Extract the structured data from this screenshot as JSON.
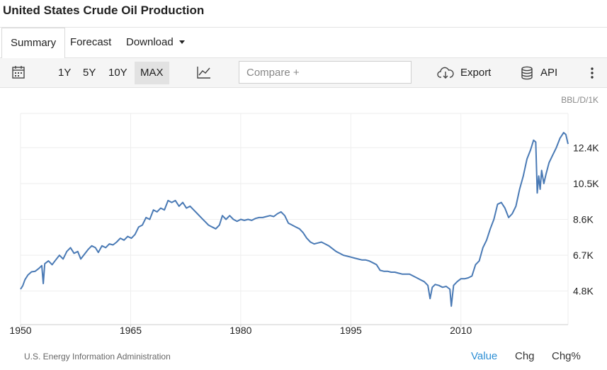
{
  "title": "United States Crude Oil Production",
  "tabs": [
    {
      "label": "Summary",
      "active": true
    },
    {
      "label": "Forecast",
      "active": false
    },
    {
      "label": "Download",
      "active": false
    }
  ],
  "toolbar": {
    "ranges": [
      "1Y",
      "5Y",
      "10Y",
      "MAX"
    ],
    "active_range": "MAX",
    "compare_placeholder": "Compare +",
    "export_label": "Export",
    "api_label": "API",
    "icons": [
      "calendar-icon",
      "line-chart-icon",
      "cloud-download-icon",
      "database-icon",
      "more-vertical-icon"
    ]
  },
  "chart_data": {
    "type": "line",
    "unit_label": "BBL/D/1K",
    "x_ticks": [
      "1950",
      "1965",
      "1980",
      "1995",
      "2010"
    ],
    "y_ticks": [
      "4.8K",
      "6.7K",
      "8.6K",
      "10.5K",
      "12.4K"
    ],
    "grid": true,
    "color": "#4a7ab5",
    "xlim": [
      1950,
      2024.6
    ],
    "ylim": [
      3020,
      14220
    ],
    "series": [
      {
        "points": [
          [
            1950.0,
            4900
          ],
          [
            1950.3,
            5080
          ],
          [
            1950.6,
            5400
          ],
          [
            1951.0,
            5650
          ],
          [
            1951.5,
            5820
          ],
          [
            1952.0,
            5850
          ],
          [
            1952.5,
            6000
          ],
          [
            1952.9,
            6150
          ],
          [
            1953.1,
            5200
          ],
          [
            1953.3,
            6250
          ],
          [
            1953.8,
            6400
          ],
          [
            1954.3,
            6200
          ],
          [
            1954.8,
            6450
          ],
          [
            1955.3,
            6700
          ],
          [
            1955.8,
            6500
          ],
          [
            1956.3,
            6900
          ],
          [
            1956.8,
            7100
          ],
          [
            1957.3,
            6800
          ],
          [
            1957.8,
            6900
          ],
          [
            1958.2,
            6500
          ],
          [
            1958.6,
            6700
          ],
          [
            1959.2,
            7000
          ],
          [
            1959.7,
            7200
          ],
          [
            1960.2,
            7100
          ],
          [
            1960.6,
            6850
          ],
          [
            1961.1,
            7200
          ],
          [
            1961.6,
            7100
          ],
          [
            1962.1,
            7300
          ],
          [
            1962.6,
            7250
          ],
          [
            1963.1,
            7400
          ],
          [
            1963.6,
            7600
          ],
          [
            1964.1,
            7500
          ],
          [
            1964.6,
            7700
          ],
          [
            1965.1,
            7600
          ],
          [
            1965.6,
            7800
          ],
          [
            1966.1,
            8200
          ],
          [
            1966.6,
            8300
          ],
          [
            1967.1,
            8700
          ],
          [
            1967.6,
            8600
          ],
          [
            1968.1,
            9100
          ],
          [
            1968.6,
            9000
          ],
          [
            1969.1,
            9200
          ],
          [
            1969.6,
            9100
          ],
          [
            1970.1,
            9600
          ],
          [
            1970.6,
            9500
          ],
          [
            1971.1,
            9600
          ],
          [
            1971.6,
            9300
          ],
          [
            1972.1,
            9500
          ],
          [
            1972.6,
            9200
          ],
          [
            1973.1,
            9300
          ],
          [
            1973.6,
            9100
          ],
          [
            1974.1,
            8900
          ],
          [
            1974.6,
            8700
          ],
          [
            1975.1,
            8500
          ],
          [
            1975.6,
            8300
          ],
          [
            1976.1,
            8200
          ],
          [
            1976.6,
            8100
          ],
          [
            1977.1,
            8300
          ],
          [
            1977.5,
            8800
          ],
          [
            1978.0,
            8600
          ],
          [
            1978.5,
            8800
          ],
          [
            1979.0,
            8600
          ],
          [
            1979.5,
            8500
          ],
          [
            1980.0,
            8600
          ],
          [
            1980.5,
            8550
          ],
          [
            1981.0,
            8600
          ],
          [
            1981.5,
            8550
          ],
          [
            1982.0,
            8650
          ],
          [
            1982.5,
            8700
          ],
          [
            1983.0,
            8700
          ],
          [
            1983.5,
            8750
          ],
          [
            1984.0,
            8800
          ],
          [
            1984.5,
            8750
          ],
          [
            1985.0,
            8900
          ],
          [
            1985.5,
            9000
          ],
          [
            1986.0,
            8800
          ],
          [
            1986.5,
            8400
          ],
          [
            1987.0,
            8300
          ],
          [
            1987.5,
            8200
          ],
          [
            1988.0,
            8100
          ],
          [
            1988.5,
            7900
          ],
          [
            1989.0,
            7600
          ],
          [
            1989.5,
            7400
          ],
          [
            1990.0,
            7300
          ],
          [
            1990.5,
            7350
          ],
          [
            1991.0,
            7400
          ],
          [
            1991.5,
            7300
          ],
          [
            1992.0,
            7200
          ],
          [
            1992.5,
            7050
          ],
          [
            1993.0,
            6900
          ],
          [
            1993.5,
            6800
          ],
          [
            1994.0,
            6700
          ],
          [
            1994.5,
            6650
          ],
          [
            1995.0,
            6600
          ],
          [
            1995.5,
            6550
          ],
          [
            1996.0,
            6500
          ],
          [
            1996.5,
            6450
          ],
          [
            1997.0,
            6450
          ],
          [
            1997.5,
            6400
          ],
          [
            1998.0,
            6300
          ],
          [
            1998.5,
            6200
          ],
          [
            1999.0,
            5900
          ],
          [
            1999.5,
            5850
          ],
          [
            2000.0,
            5850
          ],
          [
            2000.5,
            5800
          ],
          [
            2001.0,
            5800
          ],
          [
            2001.5,
            5750
          ],
          [
            2002.0,
            5700
          ],
          [
            2002.5,
            5700
          ],
          [
            2003.0,
            5700
          ],
          [
            2003.5,
            5600
          ],
          [
            2004.0,
            5500
          ],
          [
            2004.5,
            5400
          ],
          [
            2005.0,
            5300
          ],
          [
            2005.5,
            5100
          ],
          [
            2005.8,
            4400
          ],
          [
            2006.1,
            5000
          ],
          [
            2006.5,
            5150
          ],
          [
            2007.0,
            5100
          ],
          [
            2007.5,
            5000
          ],
          [
            2008.0,
            5050
          ],
          [
            2008.5,
            4900
          ],
          [
            2008.7,
            4000
          ],
          [
            2009.0,
            5100
          ],
          [
            2009.5,
            5300
          ],
          [
            2010.0,
            5450
          ],
          [
            2010.5,
            5450
          ],
          [
            2011.0,
            5500
          ],
          [
            2011.5,
            5600
          ],
          [
            2012.0,
            6200
          ],
          [
            2012.5,
            6400
          ],
          [
            2013.0,
            7100
          ],
          [
            2013.5,
            7500
          ],
          [
            2014.0,
            8100
          ],
          [
            2014.5,
            8600
          ],
          [
            2015.0,
            9400
          ],
          [
            2015.5,
            9500
          ],
          [
            2016.0,
            9200
          ],
          [
            2016.5,
            8700
          ],
          [
            2017.0,
            8900
          ],
          [
            2017.5,
            9300
          ],
          [
            2018.0,
            10200
          ],
          [
            2018.5,
            10900
          ],
          [
            2019.0,
            11800
          ],
          [
            2019.5,
            12300
          ],
          [
            2019.9,
            12800
          ],
          [
            2020.2,
            12700
          ],
          [
            2020.4,
            10000
          ],
          [
            2020.6,
            10900
          ],
          [
            2020.8,
            10200
          ],
          [
            2021.0,
            11200
          ],
          [
            2021.3,
            10500
          ],
          [
            2021.6,
            11000
          ],
          [
            2022.0,
            11600
          ],
          [
            2022.5,
            12000
          ],
          [
            2023.0,
            12400
          ],
          [
            2023.5,
            12900
          ],
          [
            2024.0,
            13200
          ],
          [
            2024.3,
            13100
          ],
          [
            2024.6,
            12600
          ]
        ]
      }
    ],
    "source": "U.S. Energy Information Administration"
  },
  "footer": {
    "buttons": [
      "Value",
      "Chg",
      "Chg%"
    ],
    "active": "Value"
  }
}
